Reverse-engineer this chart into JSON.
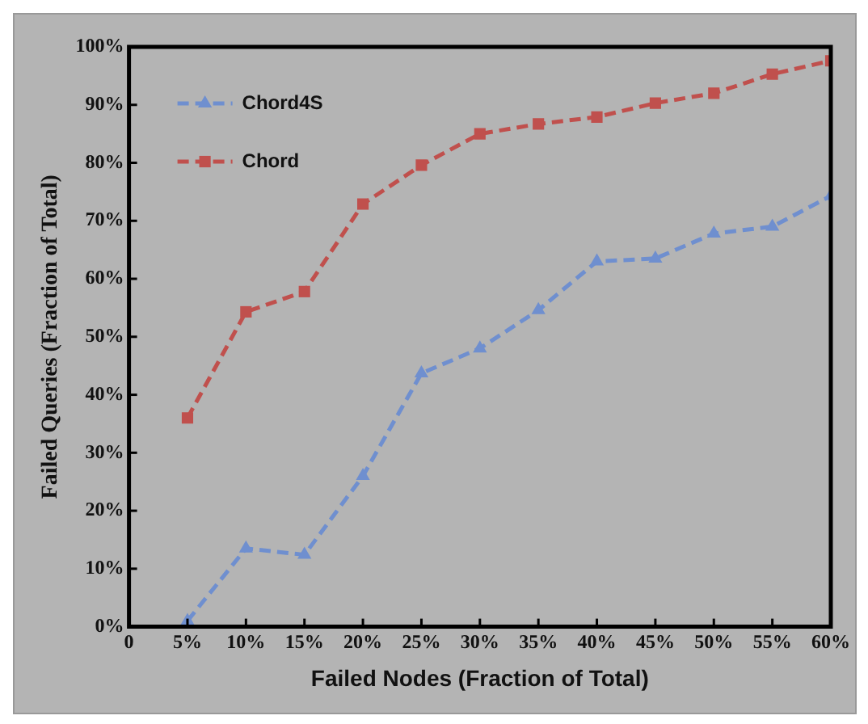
{
  "chart_data": {
    "type": "line",
    "xlabel": "Failed Nodes (Fraction of Total)",
    "ylabel": "Failed Queries (Fraction of Total)",
    "x": [
      5,
      10,
      15,
      20,
      25,
      30,
      35,
      40,
      45,
      50,
      55,
      60
    ],
    "series": [
      {
        "name": "Chord4S",
        "color": "#6f8fcf",
        "marker": "triangle",
        "values": [
          1,
          13.5,
          12.4,
          26,
          43.7,
          48,
          54.6,
          63,
          63.5,
          67.8,
          69,
          74.3
        ]
      },
      {
        "name": "Chord",
        "color": "#c0504d",
        "marker": "square",
        "values": [
          36,
          54.3,
          57.8,
          72.9,
          79.6,
          85,
          86.7,
          87.9,
          90.3,
          92,
          95.3,
          97.6
        ]
      }
    ],
    "xlim": [
      0,
      60
    ],
    "xticks": [
      0,
      {
        "value": 5,
        "label": "5%"
      },
      {
        "value": 10,
        "label": "10%"
      },
      {
        "value": 15,
        "label": "15%"
      },
      {
        "value": 20,
        "label": "20%"
      },
      {
        "value": 25,
        "label": "25%"
      },
      {
        "value": 30,
        "label": "30%"
      },
      {
        "value": 35,
        "label": "35%"
      },
      {
        "value": 40,
        "label": "40%"
      },
      {
        "value": 45,
        "label": "45%"
      },
      {
        "value": 50,
        "label": "50%"
      },
      {
        "value": 55,
        "label": "55%"
      },
      {
        "value": 60,
        "label": "60%"
      }
    ],
    "ylim": [
      0,
      100
    ],
    "yticks": [
      {
        "value": 0,
        "label": "0%"
      },
      {
        "value": 10,
        "label": "10%"
      },
      {
        "value": 20,
        "label": "20%"
      },
      {
        "value": 30,
        "label": "30%"
      },
      {
        "value": 40,
        "label": "40%"
      },
      {
        "value": 50,
        "label": "50%"
      },
      {
        "value": 60,
        "label": "60%"
      },
      {
        "value": 70,
        "label": "70%"
      },
      {
        "value": 80,
        "label": "80%"
      },
      {
        "value": 90,
        "label": "90%"
      },
      {
        "value": 100,
        "label": "100%"
      }
    ],
    "grid": false,
    "legend": "top left",
    "line_style": "dashed"
  }
}
